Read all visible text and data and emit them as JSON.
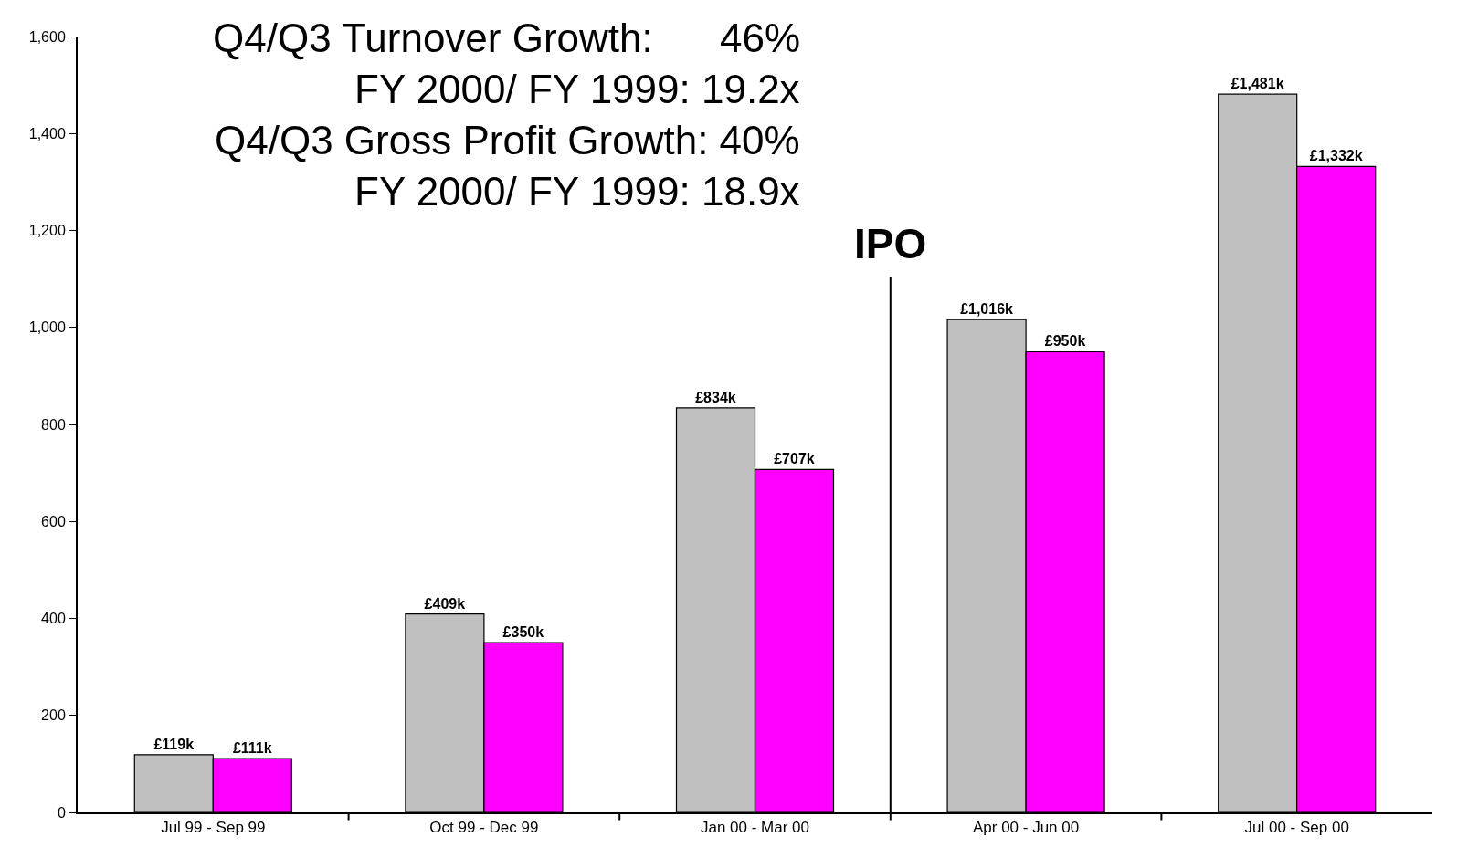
{
  "chart_data": {
    "type": "bar",
    "categories": [
      "Jul 99 - Sep 99",
      "Oct 99 - Dec 99",
      "Jan 00 - Mar 00",
      "Apr 00 - Jun 00",
      "Jul 00 - Sep 00"
    ],
    "series": [
      {
        "color": "#c0c0c0",
        "values": [
          119,
          409,
          834,
          1016,
          1481
        ],
        "value_labels": [
          "£119k",
          "£409k",
          "£834k",
          "£1,016k",
          "£1,481k"
        ]
      },
      {
        "color": "#ff00ff",
        "values": [
          111,
          350,
          707,
          950,
          1332
        ],
        "value_labels": [
          "£111k",
          "£350k",
          "£707k",
          "£950k",
          "£1,332k"
        ]
      }
    ],
    "ylim": [
      0,
      1600
    ],
    "yticks": [
      0,
      {
        "value": 200,
        "label": "200"
      },
      {
        "value": 400,
        "label": "400"
      },
      {
        "value": 600,
        "label": "600"
      },
      {
        "value": 800,
        "label": "800"
      },
      {
        "value": 1000,
        "label": "1,000"
      },
      {
        "value": 1200,
        "label": "1,200"
      },
      {
        "value": 1400,
        "label": "1,400"
      },
      {
        "value": 1600,
        "label": "1,600"
      }
    ],
    "grid": false,
    "annotations": [
      "Q4/Q3 Turnover Growth:      46%",
      "FY 2000/ FY 1999: 19.2x",
      "Q4/Q3 Gross Profit Growth: 40%",
      "FY 2000/ FY 1999: 18.9x",
      "IPO"
    ]
  }
}
